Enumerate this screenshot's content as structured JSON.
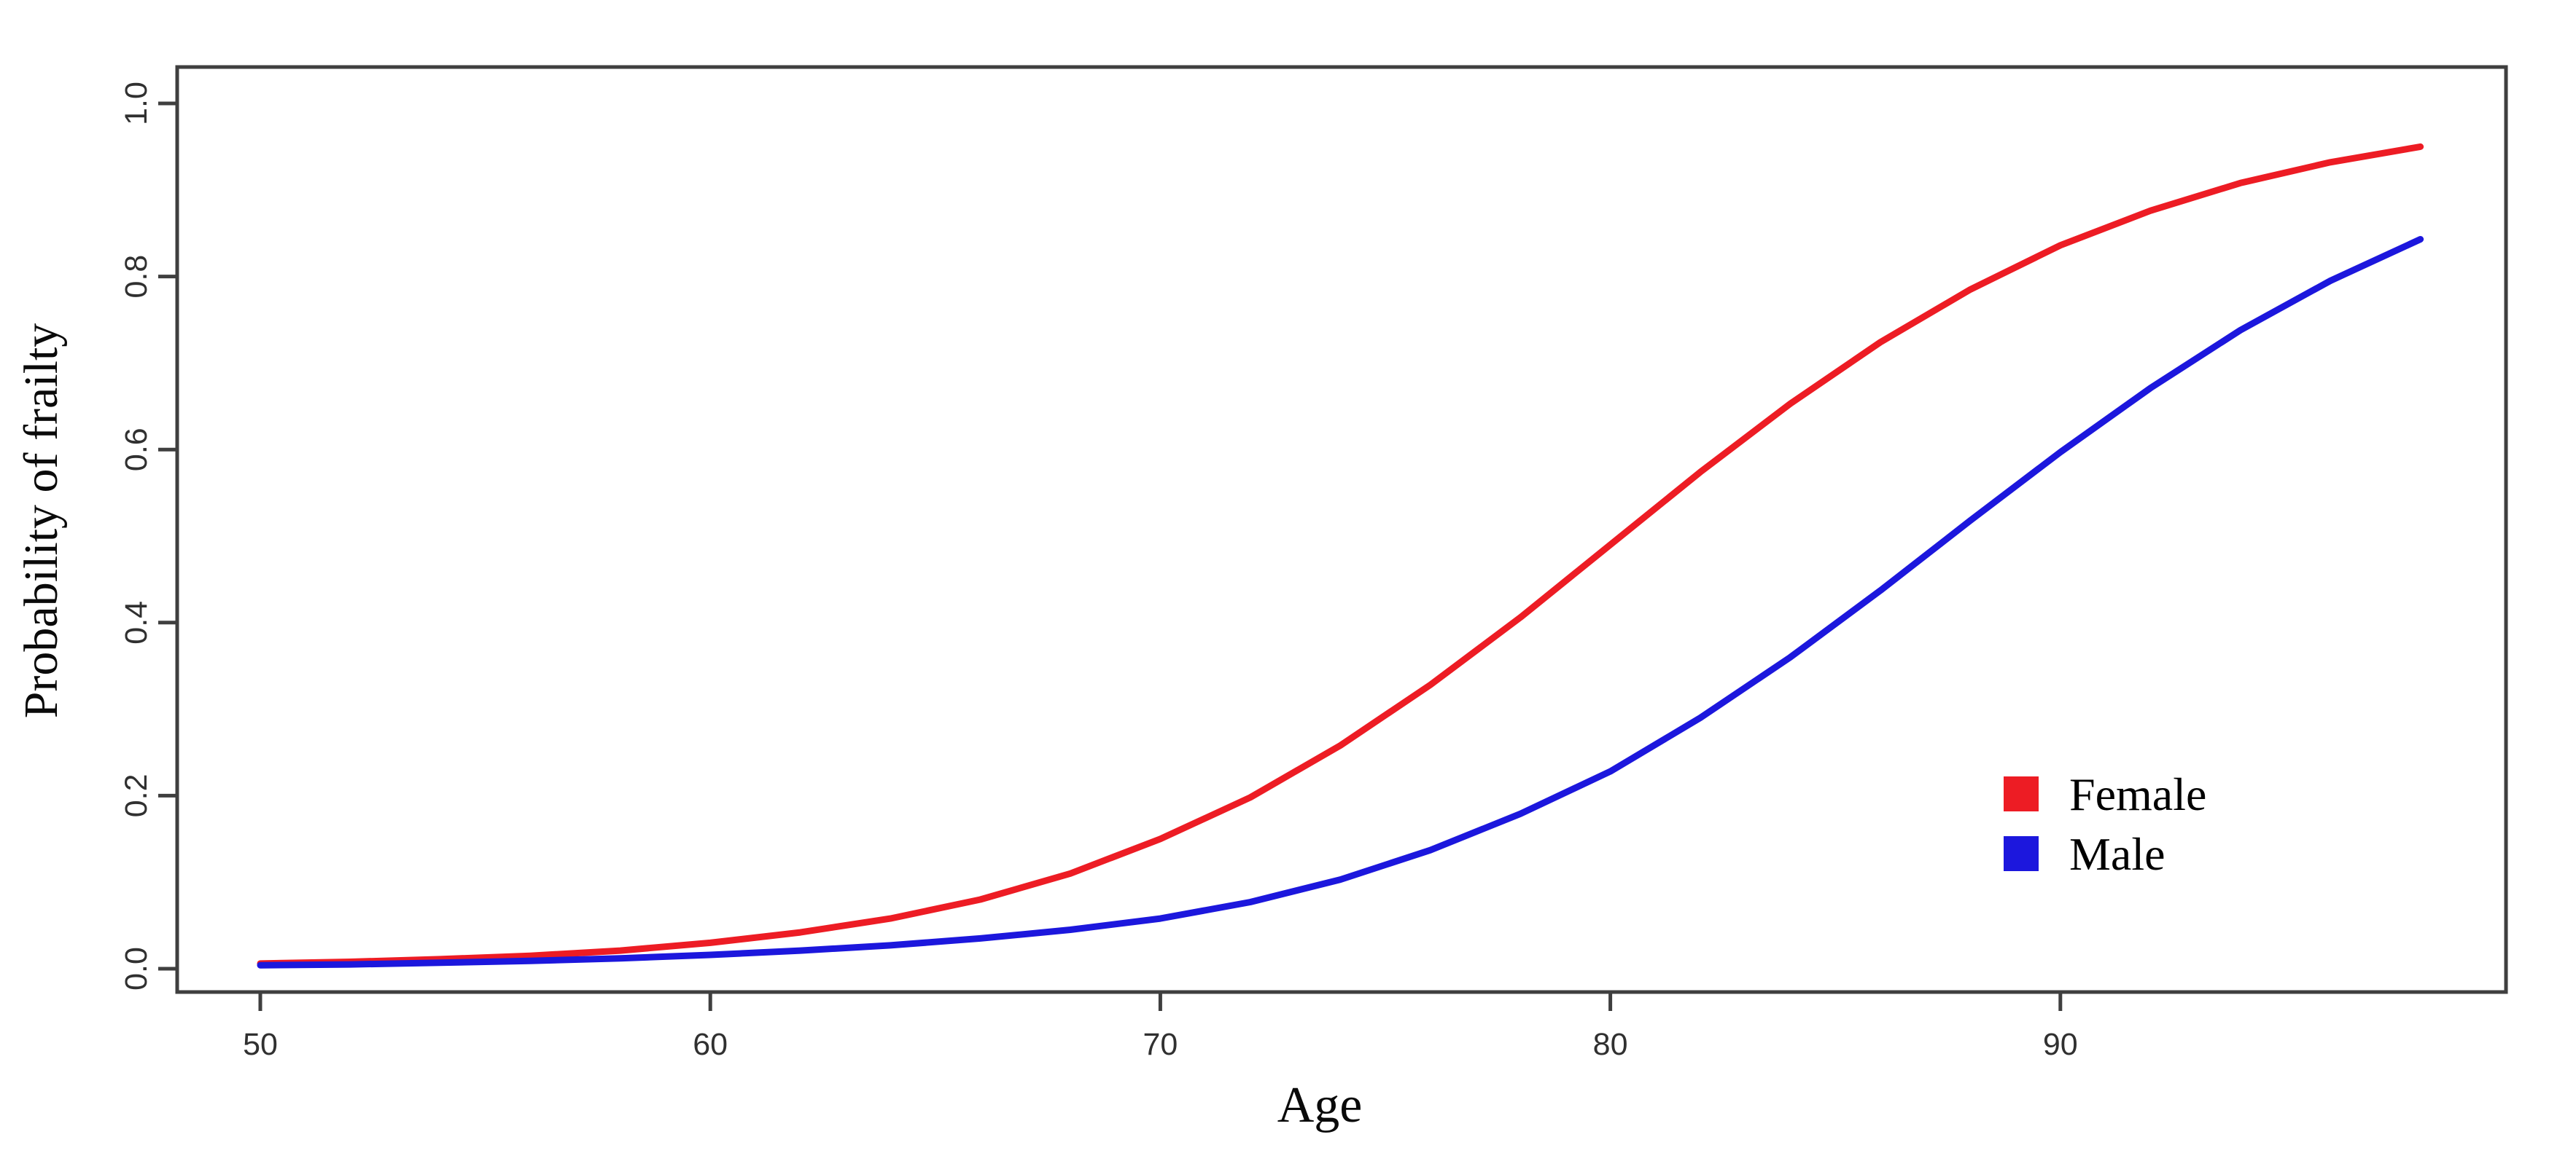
{
  "figure": {
    "background": "#ffffff",
    "axis_color": "#3f3f3f",
    "tick_label_color": "#303030"
  },
  "chart_data": {
    "type": "line",
    "title": "",
    "xlabel": "Age",
    "ylabel": "Probability of frailty",
    "x_ticks": [
      50,
      60,
      70,
      80,
      90
    ],
    "x_tick_labels": [
      "50",
      "60",
      "70",
      "80",
      "90"
    ],
    "y_ticks": [
      0.0,
      0.2,
      0.4,
      0.6,
      0.8,
      1.0
    ],
    "y_tick_labels": [
      "0.0",
      "0.2",
      "0.4",
      "0.6",
      "0.8",
      "1.0"
    ],
    "xlim": [
      48,
      100
    ],
    "ylim": [
      -0.04,
      1.06
    ],
    "grid": false,
    "legend_position": "right-center",
    "x": [
      50,
      52,
      54,
      56,
      58,
      60,
      62,
      64,
      66,
      68,
      70,
      72,
      74,
      76,
      78,
      80,
      82,
      84,
      86,
      88,
      90,
      92,
      94,
      96,
      98
    ],
    "series": [
      {
        "name": "Female",
        "color": "#ed1c24",
        "values": [
          0.006,
          0.008,
          0.011,
          0.015,
          0.021,
          0.03,
          0.042,
          0.058,
          0.08,
          0.11,
          0.15,
          0.198,
          0.258,
          0.328,
          0.406,
          0.49,
          0.574,
          0.653,
          0.724,
          0.785,
          0.836,
          0.876,
          0.908,
          0.932,
          0.95
        ]
      },
      {
        "name": "Male",
        "color": "#1c17dd",
        "values": [
          0.004,
          0.005,
          0.007,
          0.009,
          0.012,
          0.016,
          0.021,
          0.027,
          0.035,
          0.045,
          0.058,
          0.077,
          0.103,
          0.137,
          0.179,
          0.228,
          0.29,
          0.36,
          0.437,
          0.518,
          0.597,
          0.671,
          0.738,
          0.795,
          0.843
        ]
      }
    ]
  },
  "legend": {
    "items": [
      {
        "label": "Female",
        "color": "#ed1c24"
      },
      {
        "label": "Male",
        "color": "#1c17dd"
      }
    ]
  }
}
